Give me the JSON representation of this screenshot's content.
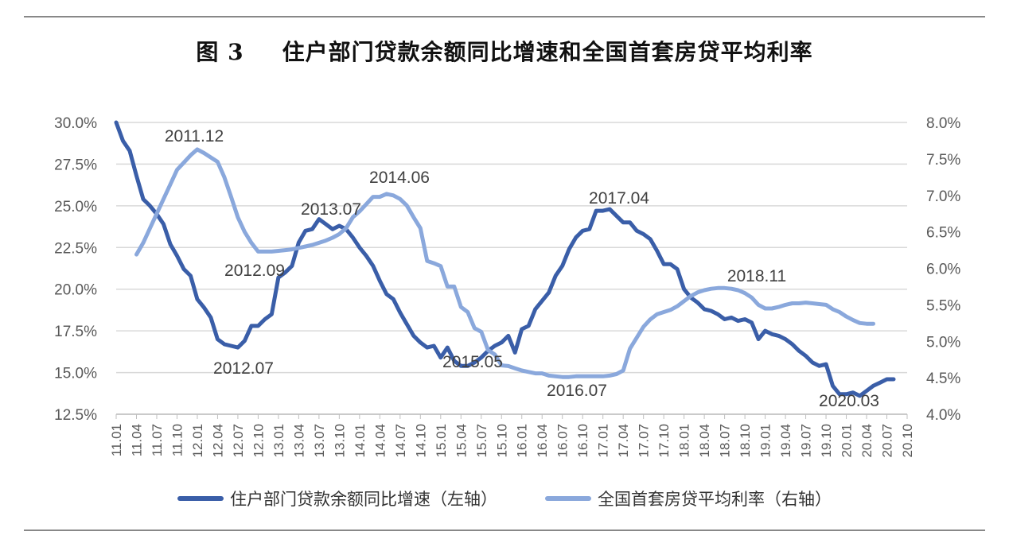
{
  "figure": {
    "number": "图 3",
    "title": "住户部门贷款余额同比增速和全国首套房贷平均利率"
  },
  "chart_data": {
    "type": "line",
    "left_axis": {
      "ylim": [
        12.5,
        30.0
      ],
      "ticks": [
        "12.5%",
        "15.0%",
        "17.5%",
        "20.0%",
        "22.5%",
        "25.0%",
        "27.5%",
        "30.0%"
      ]
    },
    "right_axis": {
      "ylim": [
        4.0,
        8.0
      ],
      "ticks": [
        "4.0%",
        "4.5%",
        "5.0%",
        "5.5%",
        "6.0%",
        "6.5%",
        "7.0%",
        "7.5%",
        "8.0%"
      ]
    },
    "x_tick_labels": [
      "11.01",
      "11.04",
      "11.07",
      "11.10",
      "12.01",
      "12.04",
      "12.07",
      "12.10",
      "13.01",
      "13.04",
      "13.07",
      "13.10",
      "14.01",
      "14.04",
      "14.07",
      "14.10",
      "15.01",
      "15.04",
      "15.07",
      "15.10",
      "16.01",
      "16.04",
      "16.07",
      "16.10",
      "17.01",
      "17.04",
      "17.07",
      "17.10",
      "18.01",
      "18.04",
      "18.07",
      "18.10",
      "19.01",
      "19.04",
      "19.07",
      "19.10",
      "20.01",
      "20.04",
      "20.07",
      "20.10"
    ],
    "grid": true,
    "legend_position": "bottom",
    "series": [
      {
        "name": "住户部门贷款余额同比增速（左轴）",
        "axis": "left",
        "color": "#3a5ea8",
        "start": "11.01",
        "values": [
          30.0,
          28.9,
          28.3,
          26.8,
          25.4,
          25.0,
          24.5,
          23.9,
          22.7,
          22.0,
          21.2,
          20.8,
          19.4,
          18.9,
          18.3,
          17.0,
          16.7,
          16.6,
          16.5,
          16.9,
          17.8,
          17.8,
          18.2,
          18.5,
          20.7,
          21.0,
          21.4,
          22.8,
          23.5,
          23.6,
          24.2,
          23.9,
          23.6,
          23.8,
          23.6,
          23.1,
          22.5,
          22.0,
          21.4,
          20.5,
          19.7,
          19.4,
          18.6,
          17.9,
          17.2,
          16.8,
          16.5,
          16.6,
          15.9,
          16.5,
          15.7,
          15.4,
          15.4,
          15.6,
          15.9,
          16.3,
          16.6,
          16.8,
          17.2,
          16.2,
          17.6,
          17.8,
          18.8,
          19.3,
          19.8,
          20.8,
          21.4,
          22.4,
          23.1,
          23.5,
          23.6,
          24.7,
          24.7,
          24.8,
          24.4,
          24.0,
          24.0,
          23.5,
          23.3,
          23.0,
          22.3,
          21.5,
          21.5,
          21.2,
          20.0,
          19.5,
          19.2,
          18.8,
          18.7,
          18.5,
          18.2,
          18.3,
          18.1,
          18.2,
          18.0,
          17.0,
          17.5,
          17.3,
          17.2,
          17.0,
          16.7,
          16.3,
          16.0,
          15.6,
          15.4,
          15.5,
          14.2,
          13.7,
          13.7,
          13.8,
          13.6,
          13.9,
          14.2,
          14.4,
          14.6,
          14.6
        ]
      },
      {
        "name": "全国首套房贷平均利率（右轴）",
        "axis": "right",
        "color": "#8aa8dc",
        "start": "11.04",
        "values": [
          6.19,
          6.35,
          6.55,
          6.75,
          6.95,
          7.15,
          7.35,
          7.45,
          7.55,
          7.63,
          7.58,
          7.52,
          7.46,
          7.25,
          6.98,
          6.7,
          6.5,
          6.35,
          6.23,
          6.23,
          6.23,
          6.24,
          6.25,
          6.26,
          6.28,
          6.3,
          6.32,
          6.35,
          6.38,
          6.42,
          6.47,
          6.55,
          6.7,
          6.78,
          6.88,
          6.98,
          6.98,
          7.02,
          7.0,
          6.95,
          6.86,
          6.7,
          6.55,
          6.1,
          6.07,
          6.03,
          5.75,
          5.75,
          5.47,
          5.4,
          5.18,
          5.13,
          4.88,
          4.82,
          4.67,
          4.66,
          4.63,
          4.6,
          4.58,
          4.56,
          4.56,
          4.53,
          4.52,
          4.51,
          4.51,
          4.52,
          4.52,
          4.52,
          4.52,
          4.52,
          4.53,
          4.55,
          4.6,
          4.9,
          5.05,
          5.2,
          5.3,
          5.37,
          5.4,
          5.43,
          5.48,
          5.55,
          5.62,
          5.67,
          5.7,
          5.72,
          5.73,
          5.73,
          5.72,
          5.7,
          5.66,
          5.6,
          5.5,
          5.45,
          5.45,
          5.47,
          5.5,
          5.52,
          5.52,
          5.53,
          5.52,
          5.51,
          5.5,
          5.44,
          5.4,
          5.34,
          5.29,
          5.25,
          5.24,
          5.24
        ]
      }
    ],
    "annotations": [
      {
        "text": "2011.12"
      },
      {
        "text": "2012.09"
      },
      {
        "text": "2012.07"
      },
      {
        "text": "2013.07"
      },
      {
        "text": "2014.06"
      },
      {
        "text": "2015.05"
      },
      {
        "text": "2016.07"
      },
      {
        "text": "2017.04"
      },
      {
        "text": "2018.11"
      },
      {
        "text": "2020.03"
      }
    ]
  }
}
